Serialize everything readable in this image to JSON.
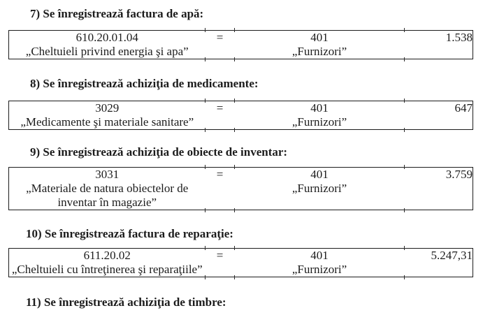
{
  "document": {
    "language": "ro",
    "text_color": "#1c1c1c",
    "border_color": "#1c1c1c",
    "sections": [
      {
        "heading": "7) Se înregistrează factura de apă:",
        "entry": {
          "debit_code": "610.20.01.04",
          "debit_name": "„Cheltuieli privind energia şi apa”",
          "equals": "=",
          "credit_code": "401",
          "credit_name": "„Furnizori”",
          "amount": "1.538"
        }
      },
      {
        "heading": "8) Se înregistrează achiziţia de medicamente:",
        "entry": {
          "debit_code": "3029",
          "debit_name": "„Medicamente şi materiale sanitare”",
          "equals": "=",
          "credit_code": "401",
          "credit_name": "„Furnizori”",
          "amount": "647"
        }
      },
      {
        "heading": "9) Se înregistrează achiziţia de obiecte de inventar:",
        "entry": {
          "debit_code": "3031",
          "debit_name": "„Materiale de natura obiectelor de inventar în magazie”",
          "equals": "=",
          "credit_code": "401",
          "credit_name": "„Furnizori”",
          "amount": "3.759"
        }
      },
      {
        "heading": "10) Se înregistrează factura de reparaţie:",
        "entry": {
          "debit_code": "611.20.02",
          "debit_name": "„Cheltuieli cu întreţinerea şi reparaţiile”",
          "equals": "=",
          "credit_code": "401",
          "credit_name": "„Furnizori”",
          "amount": "5.247,31"
        }
      },
      {
        "heading": "11) Se înregistrează achiziţia de timbre:",
        "entry": null
      }
    ]
  }
}
